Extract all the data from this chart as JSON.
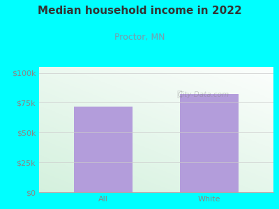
{
  "title": "Median household income in 2022",
  "subtitle": "Proctor, MN",
  "categories": [
    "All",
    "White"
  ],
  "values": [
    72000,
    82000
  ],
  "bar_color": "#b39ddb",
  "bg_color": "#00FFFF",
  "plot_bg_color_ll": [
    0.82,
    0.94,
    0.86
  ],
  "plot_bg_color_ur": [
    1.0,
    1.0,
    1.0
  ],
  "title_color": "#333333",
  "subtitle_color": "#7a9aaa",
  "tick_color": "#888888",
  "yticks": [
    0,
    25000,
    50000,
    75000,
    100000
  ],
  "ytick_labels": [
    "$0",
    "$25k",
    "$50k",
    "$75k",
    "$100k"
  ],
  "ylim": [
    0,
    105000
  ],
  "watermark": "City-Data.com",
  "title_fontsize": 11,
  "subtitle_fontsize": 9,
  "tick_fontsize": 8
}
